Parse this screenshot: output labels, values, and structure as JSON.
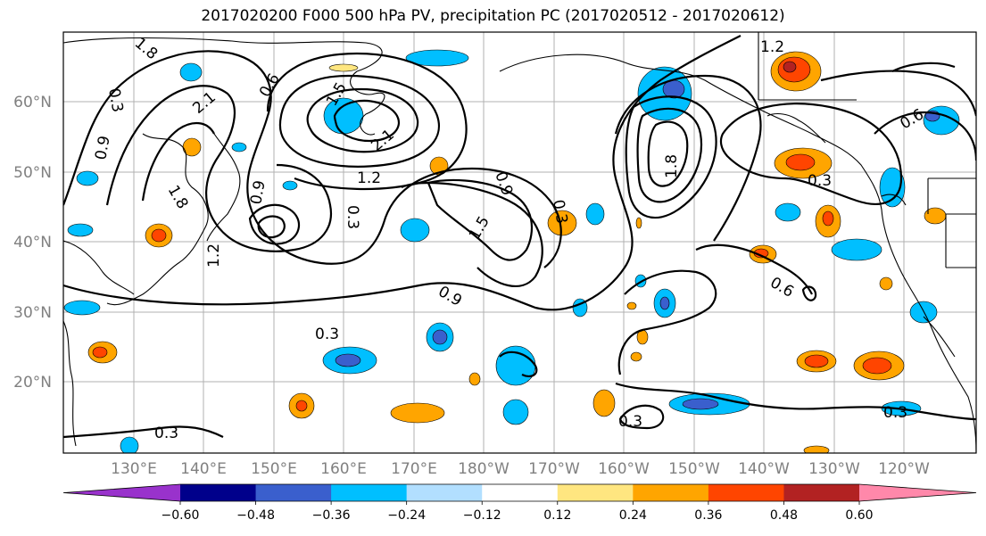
{
  "title": "2017020200 F000 500 hPa PV, precipitation PC (2017020512 - 2017020612)",
  "lat_labels": [
    "60°N",
    "50°N",
    "40°N",
    "30°N",
    "20°N"
  ],
  "lon_labels": [
    "130°E",
    "140°E",
    "150°E",
    "160°E",
    "170°E",
    "180°W",
    "170°W",
    "160°W",
    "150°W",
    "140°W",
    "130°W",
    "120°W"
  ],
  "colorbar": {
    "tick_labels": [
      "−0.60",
      "−0.48",
      "−0.36",
      "−0.24",
      "−0.12",
      "0.12",
      "0.24",
      "0.36",
      "0.48",
      "0.60"
    ],
    "colors": [
      "#9932CC",
      "#00008B",
      "#3A5FCD",
      "#00BFFF",
      "#B2DFFF",
      "#FFFFFF",
      "#FFE680",
      "#FFA500",
      "#FF4500",
      "#B22222",
      "#FF88AA"
    ]
  },
  "contour_labels": [
    {
      "text": "1.8"
    },
    {
      "text": "0.3"
    },
    {
      "text": "2.1"
    },
    {
      "text": "0.6"
    },
    {
      "text": "0.9"
    },
    {
      "text": "1.8"
    },
    {
      "text": "1.2"
    },
    {
      "text": "0.9"
    },
    {
      "text": "1.5"
    },
    {
      "text": "2.1"
    },
    {
      "text": "0.3"
    },
    {
      "text": "1.2"
    },
    {
      "text": "1.5"
    },
    {
      "text": "0.9"
    },
    {
      "text": "0.3"
    },
    {
      "text": "0.3"
    },
    {
      "text": "1.8"
    },
    {
      "text": "0.3"
    },
    {
      "text": "0.6"
    },
    {
      "text": "0.3"
    },
    {
      "text": "0.6"
    },
    {
      "text": "0.3"
    },
    {
      "text": "0.3"
    },
    {
      "text": "1.2"
    },
    {
      "text": "0.9"
    }
  ]
}
